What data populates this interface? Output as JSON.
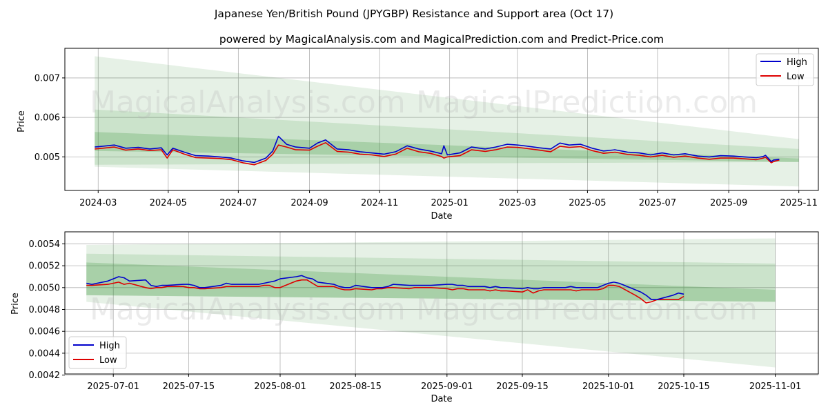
{
  "title": "Japanese Yen/British Pound (JPYGBP) Resistance and Support area (Oct 17)",
  "subtitle": "powered by MagicalAnalysis.com and MagicalPrediction.com and Predict-Price.com",
  "watermarks": [
    "MagicalAnalysis.com",
    "MagicalPrediction.com"
  ],
  "colors": {
    "high": "#0000cc",
    "low": "#dd0000",
    "band": "#2e8b2e",
    "grid": "#b0b0b0"
  },
  "chart_data": [
    {
      "type": "line",
      "xlabel": "Date",
      "ylabel": "Price",
      "grid": true,
      "legend": "upper right",
      "x_range": [
        "2024-02-01",
        "2025-11-18"
      ],
      "ylim": [
        0.00415,
        0.00775
      ],
      "x_ticks": [
        "2024-03",
        "2024-05",
        "2024-07",
        "2024-09",
        "2024-11",
        "2025-01",
        "2025-03",
        "2025-05",
        "2025-07",
        "2025-09",
        "2025-11"
      ],
      "x_tick_dates": [
        "2024-03-01",
        "2024-05-01",
        "2024-07-01",
        "2024-09-01",
        "2024-11-01",
        "2025-01-01",
        "2025-03-01",
        "2025-05-01",
        "2025-07-01",
        "2025-09-01",
        "2025-11-01"
      ],
      "y_ticks": [
        0.005,
        0.006,
        0.007
      ],
      "y_tick_labels": [
        "0.005",
        "0.006",
        "0.007"
      ],
      "bands": [
        {
          "x": [
            "2024-02-27",
            "2025-11-01"
          ],
          "top": [
            0.00755,
            0.00545
          ],
          "bottom": [
            0.00475,
            0.00425
          ],
          "opacity": 0.12
        },
        {
          "x": [
            "2024-02-27",
            "2025-11-01"
          ],
          "top": [
            0.0062,
            0.0052
          ],
          "bottom": [
            0.0048,
            0.00487
          ],
          "opacity": 0.14
        },
        {
          "x": [
            "2024-02-27",
            "2025-11-01"
          ],
          "top": [
            0.00563,
            0.00496
          ],
          "bottom": [
            0.00515,
            0.00487
          ],
          "opacity": 0.22
        }
      ],
      "series": [
        {
          "name": "High",
          "x": [
            "2024-02-27",
            "2024-03-05",
            "2024-03-15",
            "2024-03-25",
            "2024-04-05",
            "2024-04-15",
            "2024-04-25",
            "2024-04-30",
            "2024-05-05",
            "2024-05-15",
            "2024-05-25",
            "2024-06-05",
            "2024-06-15",
            "2024-06-25",
            "2024-07-05",
            "2024-07-15",
            "2024-07-25",
            "2024-07-31",
            "2024-08-05",
            "2024-08-12",
            "2024-08-20",
            "2024-09-01",
            "2024-09-08",
            "2024-09-15",
            "2024-09-25",
            "2024-10-05",
            "2024-10-15",
            "2024-10-25",
            "2024-11-05",
            "2024-11-15",
            "2024-11-25",
            "2024-12-05",
            "2024-12-15",
            "2024-12-25",
            "2024-12-27",
            "2024-12-30",
            "2025-01-10",
            "2025-01-20",
            "2025-02-01",
            "2025-02-10",
            "2025-02-20",
            "2025-03-01",
            "2025-03-10",
            "2025-03-20",
            "2025-03-30",
            "2025-04-07",
            "2025-04-15",
            "2025-04-25",
            "2025-05-05",
            "2025-05-15",
            "2025-05-25",
            "2025-06-05",
            "2025-06-15",
            "2025-06-25",
            "2025-07-05",
            "2025-07-15",
            "2025-07-25",
            "2025-08-05",
            "2025-08-15",
            "2025-08-25",
            "2025-09-05",
            "2025-09-15",
            "2025-09-25",
            "2025-10-01",
            "2025-10-03",
            "2025-10-08",
            "2025-10-10",
            "2025-10-15"
          ],
          "values": [
            0.00525,
            0.00527,
            0.0053,
            0.00522,
            0.00524,
            0.0052,
            0.00523,
            0.00505,
            0.00522,
            0.00512,
            0.00503,
            0.00502,
            0.005,
            0.00497,
            0.0049,
            0.00486,
            0.00497,
            0.00515,
            0.00552,
            0.00532,
            0.00525,
            0.00522,
            0.00535,
            0.00543,
            0.0052,
            0.00518,
            0.00513,
            0.0051,
            0.00507,
            0.00513,
            0.00528,
            0.0052,
            0.00515,
            0.00508,
            0.00528,
            0.00505,
            0.0051,
            0.00525,
            0.0052,
            0.00525,
            0.00532,
            0.0053,
            0.00527,
            0.00523,
            0.0052,
            0.00535,
            0.0053,
            0.00532,
            0.00522,
            0.00515,
            0.00518,
            0.00512,
            0.0051,
            0.00505,
            0.0051,
            0.00505,
            0.00508,
            0.00502,
            0.005,
            0.00503,
            0.00502,
            0.005,
            0.00498,
            0.00501,
            0.00504,
            0.00488,
            0.00492,
            0.00494
          ]
        },
        {
          "name": "Low",
          "x": [
            "2024-02-27",
            "2024-03-05",
            "2024-03-15",
            "2024-03-25",
            "2024-04-05",
            "2024-04-15",
            "2024-04-25",
            "2024-04-30",
            "2024-05-05",
            "2024-05-15",
            "2024-05-25",
            "2024-06-05",
            "2024-06-15",
            "2024-06-25",
            "2024-07-05",
            "2024-07-15",
            "2024-07-25",
            "2024-07-31",
            "2024-08-05",
            "2024-08-12",
            "2024-08-20",
            "2024-09-01",
            "2024-09-08",
            "2024-09-15",
            "2024-09-25",
            "2024-10-05",
            "2024-10-15",
            "2024-10-25",
            "2024-11-05",
            "2024-11-15",
            "2024-11-25",
            "2024-12-05",
            "2024-12-15",
            "2024-12-25",
            "2024-12-27",
            "2024-12-30",
            "2025-01-10",
            "2025-01-20",
            "2025-02-01",
            "2025-02-10",
            "2025-02-20",
            "2025-03-01",
            "2025-03-10",
            "2025-03-20",
            "2025-03-30",
            "2025-04-07",
            "2025-04-15",
            "2025-04-25",
            "2025-05-05",
            "2025-05-15",
            "2025-05-25",
            "2025-06-05",
            "2025-06-15",
            "2025-06-25",
            "2025-07-05",
            "2025-07-15",
            "2025-07-25",
            "2025-08-05",
            "2025-08-15",
            "2025-08-25",
            "2025-09-05",
            "2025-09-15",
            "2025-09-25",
            "2025-10-01",
            "2025-10-03",
            "2025-10-08",
            "2025-10-10",
            "2025-10-15"
          ],
          "values": [
            0.0052,
            0.00522,
            0.00525,
            0.00517,
            0.0052,
            0.00516,
            0.00518,
            0.00497,
            0.00518,
            0.00507,
            0.00498,
            0.00497,
            0.00496,
            0.00493,
            0.00485,
            0.0048,
            0.00491,
            0.00507,
            0.0053,
            0.00525,
            0.00518,
            0.00517,
            0.00527,
            0.00536,
            0.00514,
            0.00512,
            0.00507,
            0.00505,
            0.00501,
            0.00507,
            0.00522,
            0.00513,
            0.00509,
            0.00501,
            0.00497,
            0.005,
            0.00503,
            0.00518,
            0.00514,
            0.00518,
            0.00525,
            0.00524,
            0.00521,
            0.00517,
            0.00513,
            0.00527,
            0.00524,
            0.00526,
            0.00516,
            0.00509,
            0.00512,
            0.00506,
            0.00504,
            0.005,
            0.00504,
            0.00499,
            0.00502,
            0.00497,
            0.00494,
            0.00497,
            0.00497,
            0.00495,
            0.00493,
            0.00497,
            0.00499,
            0.00485,
            0.00488,
            0.00492
          ]
        }
      ]
    },
    {
      "type": "line",
      "xlabel": "Date",
      "ylabel": "Price",
      "grid": true,
      "legend": "lower left",
      "x_range": [
        "2025-06-22",
        "2025-11-09"
      ],
      "ylim": [
        0.00421,
        0.00551
      ],
      "x_ticks": [
        "2025-07-01",
        "2025-07-15",
        "2025-08-01",
        "2025-08-15",
        "2025-09-01",
        "2025-09-15",
        "2025-10-01",
        "2025-10-15",
        "2025-11-01"
      ],
      "y_ticks": [
        0.0042,
        0.0044,
        0.0046,
        0.0048,
        0.005,
        0.0052,
        0.0054
      ],
      "y_tick_labels": [
        "0.0042",
        "0.0044",
        "0.0046",
        "0.0048",
        "0.0050",
        "0.0052",
        "0.0054"
      ],
      "bands": [
        {
          "x": [
            "2025-06-26",
            "2025-11-01"
          ],
          "top": [
            0.00539,
            0.00545
          ],
          "bottom": [
            0.00487,
            0.00427
          ],
          "opacity": 0.12
        },
        {
          "x": [
            "2025-06-26",
            "2025-11-01"
          ],
          "top": [
            0.00531,
            0.00522
          ],
          "bottom": [
            0.00493,
            0.00487
          ],
          "opacity": 0.14
        },
        {
          "x": [
            "2025-06-26",
            "2025-11-01"
          ],
          "top": [
            0.00523,
            0.00498
          ],
          "bottom": [
            0.00493,
            0.00487
          ],
          "opacity": 0.22
        }
      ],
      "series": [
        {
          "name": "High",
          "x": [
            "2025-06-26",
            "2025-06-27",
            "2025-06-30",
            "2025-07-01",
            "2025-07-02",
            "2025-07-03",
            "2025-07-04",
            "2025-07-07",
            "2025-07-08",
            "2025-07-09",
            "2025-07-10",
            "2025-07-11",
            "2025-07-14",
            "2025-07-15",
            "2025-07-16",
            "2025-07-17",
            "2025-07-18",
            "2025-07-21",
            "2025-07-22",
            "2025-07-23",
            "2025-07-24",
            "2025-07-25",
            "2025-07-28",
            "2025-07-29",
            "2025-07-30",
            "2025-07-31",
            "2025-08-01",
            "2025-08-04",
            "2025-08-05",
            "2025-08-06",
            "2025-08-07",
            "2025-08-08",
            "2025-08-11",
            "2025-08-12",
            "2025-08-13",
            "2025-08-14",
            "2025-08-15",
            "2025-08-18",
            "2025-08-19",
            "2025-08-20",
            "2025-08-21",
            "2025-08-22",
            "2025-08-25",
            "2025-08-26",
            "2025-08-27",
            "2025-08-28",
            "2025-08-29",
            "2025-09-01",
            "2025-09-02",
            "2025-09-03",
            "2025-09-04",
            "2025-09-05",
            "2025-09-08",
            "2025-09-09",
            "2025-09-10",
            "2025-09-11",
            "2025-09-12",
            "2025-09-15",
            "2025-09-16",
            "2025-09-17",
            "2025-09-18",
            "2025-09-19",
            "2025-09-22",
            "2025-09-23",
            "2025-09-24",
            "2025-09-25",
            "2025-09-26",
            "2025-09-29",
            "2025-09-30",
            "2025-10-01",
            "2025-10-02",
            "2025-10-03",
            "2025-10-06",
            "2025-10-07",
            "2025-10-08",
            "2025-10-09",
            "2025-10-10",
            "2025-10-13",
            "2025-10-14",
            "2025-10-15"
          ],
          "values": [
            0.00504,
            0.00503,
            0.00506,
            0.00508,
            0.0051,
            0.00509,
            0.00506,
            0.00507,
            0.00502,
            0.00501,
            0.00502,
            0.00502,
            0.00503,
            0.00503,
            0.00502,
            0.005,
            0.005,
            0.00502,
            0.00504,
            0.00503,
            0.00503,
            0.00503,
            0.00503,
            0.00504,
            0.00505,
            0.00506,
            0.00508,
            0.0051,
            0.00511,
            0.00509,
            0.00508,
            0.00505,
            0.00503,
            0.00501,
            0.005,
            0.005,
            0.00502,
            0.005,
            0.005,
            0.005,
            0.00501,
            0.00503,
            0.00502,
            0.00502,
            0.00502,
            0.00502,
            0.00502,
            0.00503,
            0.00503,
            0.00502,
            0.00502,
            0.00501,
            0.00501,
            0.005,
            0.00501,
            0.005,
            0.005,
            0.00499,
            0.005,
            0.00499,
            0.00499,
            0.005,
            0.005,
            0.005,
            0.00501,
            0.005,
            0.005,
            0.005,
            0.00502,
            0.00504,
            0.00505,
            0.00504,
            0.00498,
            0.00496,
            0.00493,
            0.00489,
            0.00489,
            0.00493,
            0.00495,
            0.00494
          ]
        },
        {
          "name": "Low",
          "x": [
            "2025-06-26",
            "2025-06-27",
            "2025-06-30",
            "2025-07-01",
            "2025-07-02",
            "2025-07-03",
            "2025-07-04",
            "2025-07-07",
            "2025-07-08",
            "2025-07-09",
            "2025-07-10",
            "2025-07-11",
            "2025-07-14",
            "2025-07-15",
            "2025-07-16",
            "2025-07-17",
            "2025-07-18",
            "2025-07-21",
            "2025-07-22",
            "2025-07-23",
            "2025-07-24",
            "2025-07-25",
            "2025-07-28",
            "2025-07-29",
            "2025-07-30",
            "2025-07-31",
            "2025-08-01",
            "2025-08-04",
            "2025-08-05",
            "2025-08-06",
            "2025-08-07",
            "2025-08-08",
            "2025-08-11",
            "2025-08-12",
            "2025-08-13",
            "2025-08-14",
            "2025-08-15",
            "2025-08-18",
            "2025-08-19",
            "2025-08-20",
            "2025-08-21",
            "2025-08-22",
            "2025-08-25",
            "2025-08-26",
            "2025-08-27",
            "2025-08-28",
            "2025-08-29",
            "2025-09-01",
            "2025-09-02",
            "2025-09-03",
            "2025-09-04",
            "2025-09-05",
            "2025-09-08",
            "2025-09-09",
            "2025-09-10",
            "2025-09-11",
            "2025-09-12",
            "2025-09-15",
            "2025-09-16",
            "2025-09-17",
            "2025-09-18",
            "2025-09-19",
            "2025-09-22",
            "2025-09-23",
            "2025-09-24",
            "2025-09-25",
            "2025-09-26",
            "2025-09-29",
            "2025-09-30",
            "2025-10-01",
            "2025-10-02",
            "2025-10-03",
            "2025-10-06",
            "2025-10-07",
            "2025-10-08",
            "2025-10-09",
            "2025-10-10",
            "2025-10-13",
            "2025-10-14",
            "2025-10-15"
          ],
          "values": [
            0.00502,
            0.00502,
            0.00503,
            0.00504,
            0.00505,
            0.00503,
            0.00504,
            0.005,
            0.00499,
            0.005,
            0.005,
            0.00501,
            0.00501,
            0.005,
            0.005,
            0.00499,
            0.00499,
            0.005,
            0.00501,
            0.00501,
            0.00501,
            0.00501,
            0.00501,
            0.00502,
            0.00502,
            0.005,
            0.005,
            0.00506,
            0.00507,
            0.00507,
            0.00504,
            0.00501,
            0.00501,
            0.00499,
            0.00498,
            0.00498,
            0.00499,
            0.00498,
            0.00499,
            0.00499,
            0.005,
            0.005,
            0.00499,
            0.005,
            0.005,
            0.005,
            0.005,
            0.00499,
            0.00498,
            0.00499,
            0.00499,
            0.00498,
            0.00498,
            0.00497,
            0.00498,
            0.00497,
            0.00497,
            0.00496,
            0.00498,
            0.00495,
            0.00497,
            0.00498,
            0.00498,
            0.00498,
            0.00498,
            0.00497,
            0.00498,
            0.00498,
            0.00499,
            0.00502,
            0.00502,
            0.00501,
            0.00493,
            0.0049,
            0.00486,
            0.00487,
            0.00489,
            0.00489,
            0.00489,
            0.00492
          ]
        }
      ]
    }
  ]
}
